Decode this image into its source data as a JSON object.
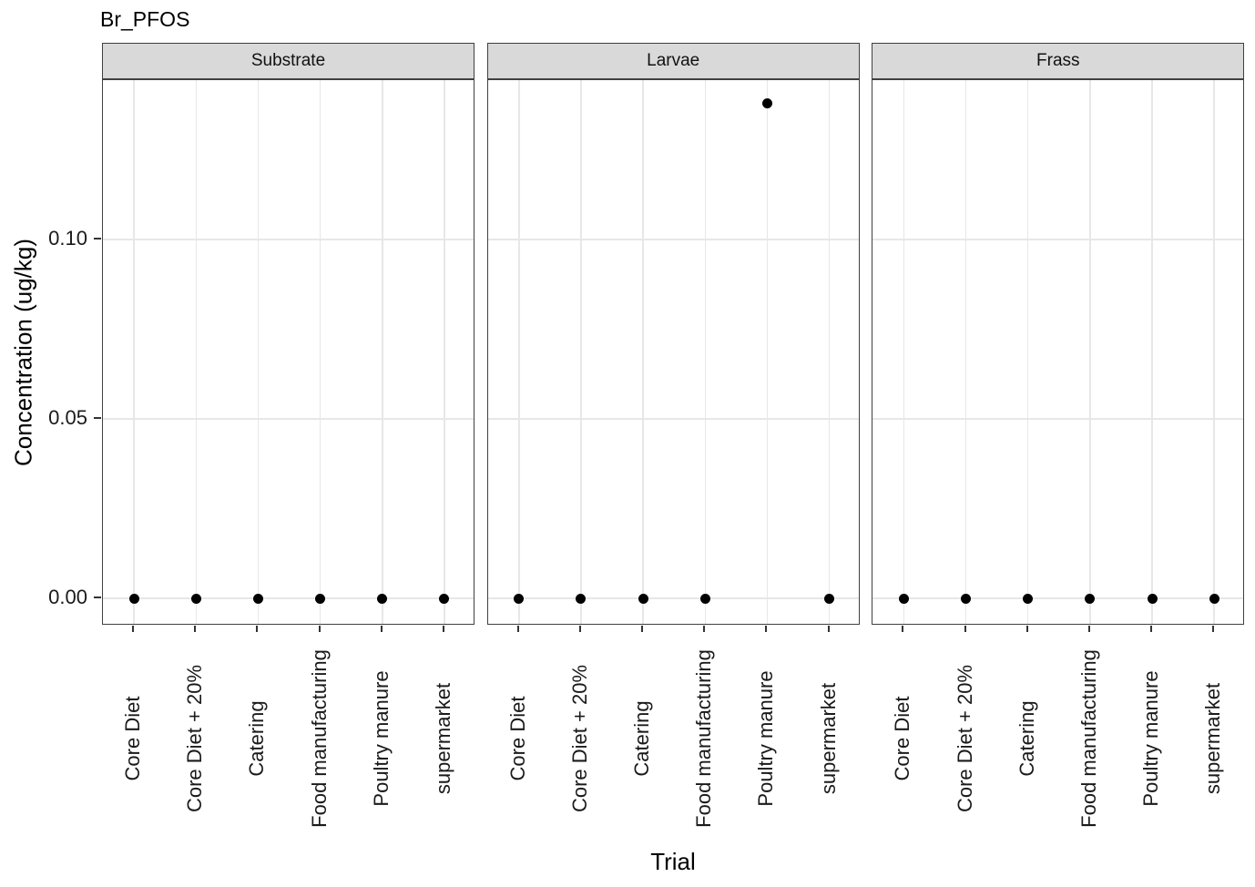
{
  "chart_data": {
    "type": "scatter",
    "title": "Br_PFOS",
    "xlabel": "Trial",
    "ylabel": "Concentration (ug/kg)",
    "facet_layout": "3 panels side-by-side, shared y axis, strip headers on top",
    "categories": [
      "Core Diet",
      "Core Diet + 20%",
      "Catering",
      "Food manufacturing",
      "Poultry manure",
      "supermarket"
    ],
    "facets": [
      {
        "label": "Substrate",
        "values": [
          0,
          0,
          0,
          0,
          0,
          0
        ]
      },
      {
        "label": "Larvae",
        "values": [
          0,
          0,
          0,
          0,
          0.138,
          0
        ]
      },
      {
        "label": "Frass",
        "values": [
          0,
          0,
          0,
          0,
          0,
          0
        ]
      }
    ],
    "yticks": {
      "values": [
        0,
        0.05,
        0.1
      ],
      "labels": [
        "0.00",
        "0.05",
        "0.10"
      ]
    },
    "ylim": [
      -0.0076,
      0.1445
    ],
    "grid": "major only, light gray, vertical line per category and horizontal line per y tick",
    "legend": "none",
    "colors": {
      "point": "#000000",
      "strip_fill": "#d9d9d9",
      "panel_border": "#404040",
      "gridline": "#e7e7e7",
      "tick_mark": "#333333",
      "tick_text": "#1a1a1a",
      "title_text": "#000000",
      "background": "#ffffff"
    }
  }
}
